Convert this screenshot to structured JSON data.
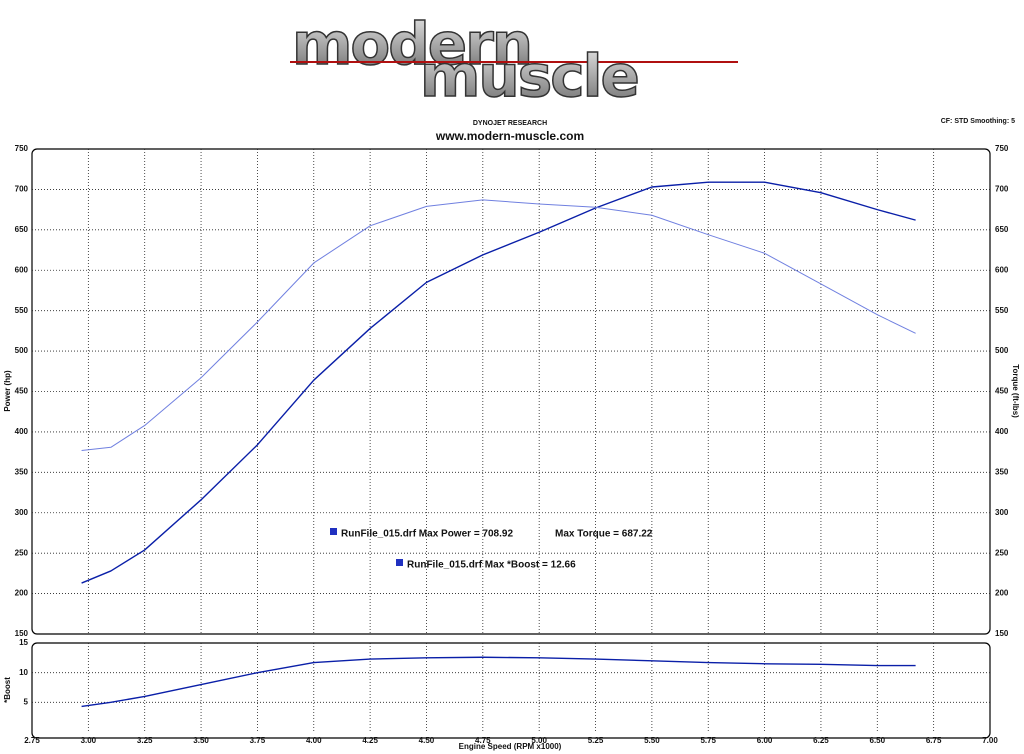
{
  "logo": [
    "modern",
    "muscle"
  ],
  "chart_data": [
    {
      "type": "line",
      "title": "www.modern-muscle.com",
      "subtitle": "DYNOJET RESEARCH",
      "note": "CF: STD  Smoothing: 5",
      "ylabel": "Power (hp)",
      "y2label": "Torque (ft-lbs)",
      "annotations": [
        "RunFile_015.drf Max Power = 708.92",
        "Max Torque = 687.22",
        "RunFile_015.drf Max *Boost = 12.66"
      ],
      "x": [
        2.97,
        3.1,
        3.25,
        3.5,
        3.75,
        4.0,
        4.25,
        4.5,
        4.75,
        5.0,
        5.25,
        5.5,
        5.75,
        6.0,
        6.25,
        6.5,
        6.67
      ],
      "series": [
        {
          "color": "#0a1fa8",
          "values": [
            213,
            228,
            254,
            316,
            384,
            464,
            528,
            585,
            619,
            647,
            677,
            703,
            709,
            709,
            696,
            675,
            662
          ]
        },
        {
          "color": "#7080e0",
          "axis": "y2",
          "values": [
            377,
            381,
            408,
            467,
            536,
            609,
            655,
            679,
            687,
            682,
            678,
            668,
            644,
            621,
            583,
            545,
            522
          ]
        }
      ],
      "xlim": [
        2.75,
        7.0
      ],
      "ylim": [
        150,
        750
      ],
      "yticks": [
        150,
        200,
        250,
        300,
        350,
        400,
        450,
        500,
        550,
        600,
        650,
        700,
        750
      ],
      "y2lim": [
        150,
        750
      ],
      "y2ticks": [
        150,
        200,
        250,
        300,
        350,
        400,
        450,
        500,
        550,
        600,
        650,
        700,
        750
      ],
      "grid": true
    },
    {
      "type": "line",
      "ylabel": "*Boost",
      "xlabel": "Engine Speed (RPM x1000)",
      "x": [
        2.97,
        3.1,
        3.25,
        3.5,
        3.75,
        4.0,
        4.25,
        4.5,
        4.75,
        5.0,
        5.25,
        5.5,
        5.75,
        6.0,
        6.25,
        6.5,
        6.67
      ],
      "series": [
        {
          "color": "#0a1fa8",
          "values": [
            4.3,
            5,
            6,
            8,
            10,
            11.7,
            12.3,
            12.5,
            12.6,
            12.5,
            12.3,
            12,
            11.7,
            11.5,
            11.4,
            11.2,
            11.2
          ]
        }
      ],
      "xlim": [
        2.75,
        7.0
      ],
      "xticks": [
        2.75,
        {
          "value": 3,
          "label": "3.00"
        },
        3.25,
        {
          "value": 3.5,
          "label": "3.50"
        },
        3.75,
        {
          "value": 4,
          "label": "4.00"
        },
        4.25,
        {
          "value": 4.5,
          "label": "4.50"
        },
        4.75,
        {
          "value": 5,
          "label": "5.00"
        },
        5.25,
        {
          "value": 5.5,
          "label": "5.50"
        },
        5.75,
        {
          "value": 6,
          "label": "6.00"
        },
        6.25,
        {
          "value": 6.5,
          "label": "6.50"
        },
        6.75,
        {
          "value": 7,
          "label": "7.00"
        }
      ],
      "ylim": [
        0,
        15
      ],
      "yticks": [
        5,
        10,
        15
      ],
      "grid": true
    }
  ]
}
